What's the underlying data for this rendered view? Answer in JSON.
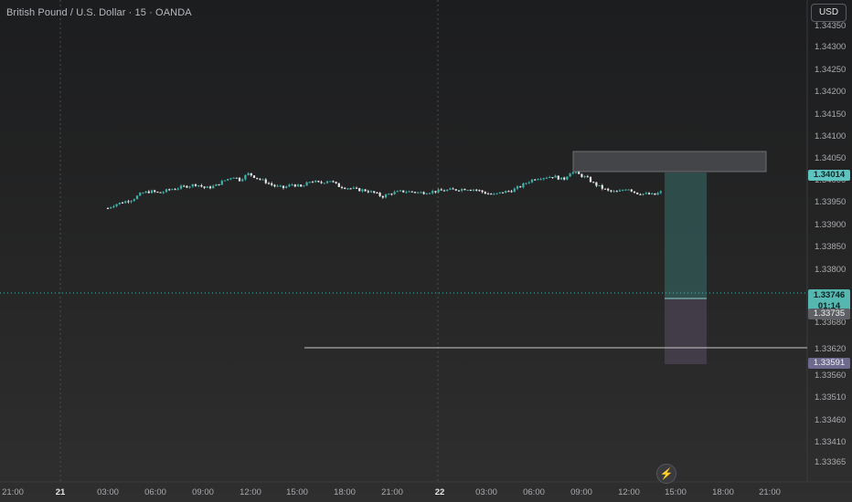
{
  "header": {
    "title": "British Pound / U.S. Dollar · 15 · OANDA"
  },
  "currency_button": {
    "label": "USD"
  },
  "price_axis": {
    "ticks": [
      "1.34350",
      "1.34300",
      "1.34250",
      "1.34200",
      "1.34150",
      "1.34100",
      "1.34050",
      "1.34000",
      "1.33950",
      "1.33900",
      "1.33850",
      "1.33800",
      "1.33680",
      "1.33620",
      "1.33560",
      "1.33510",
      "1.33460",
      "1.33410",
      "1.33365"
    ]
  },
  "time_axis": {
    "labels": [
      "21:00",
      "21",
      "03:00",
      "06:00",
      "09:00",
      "12:00",
      "15:00",
      "18:00",
      "21:00",
      "22",
      "03:00",
      "06:00",
      "09:00",
      "12:00",
      "15:00",
      "18:00",
      "21:00"
    ],
    "bold": [
      "21",
      "22"
    ]
  },
  "price_badges": {
    "tp_price": "1.34014",
    "last_price": "1.33746",
    "countdown": "01:14",
    "entry_price": "1.33735",
    "sl_price": "1.33591"
  },
  "colors": {
    "up": "#3fb3ab",
    "down": "#e9e9e9",
    "accent": "#5ec4bf"
  },
  "chart_data": {
    "type": "candlestick",
    "symbol": "GBPUSD",
    "interval": "15",
    "y_range": [
      1.3335,
      1.3437
    ],
    "last_price": 1.33746,
    "levels": {
      "take_profit": 1.34014,
      "entry": 1.33735,
      "stop_loss": 1.33591,
      "support": 1.3363,
      "resistance_zone": [
        1.3402,
        1.3406
      ]
    }
  }
}
